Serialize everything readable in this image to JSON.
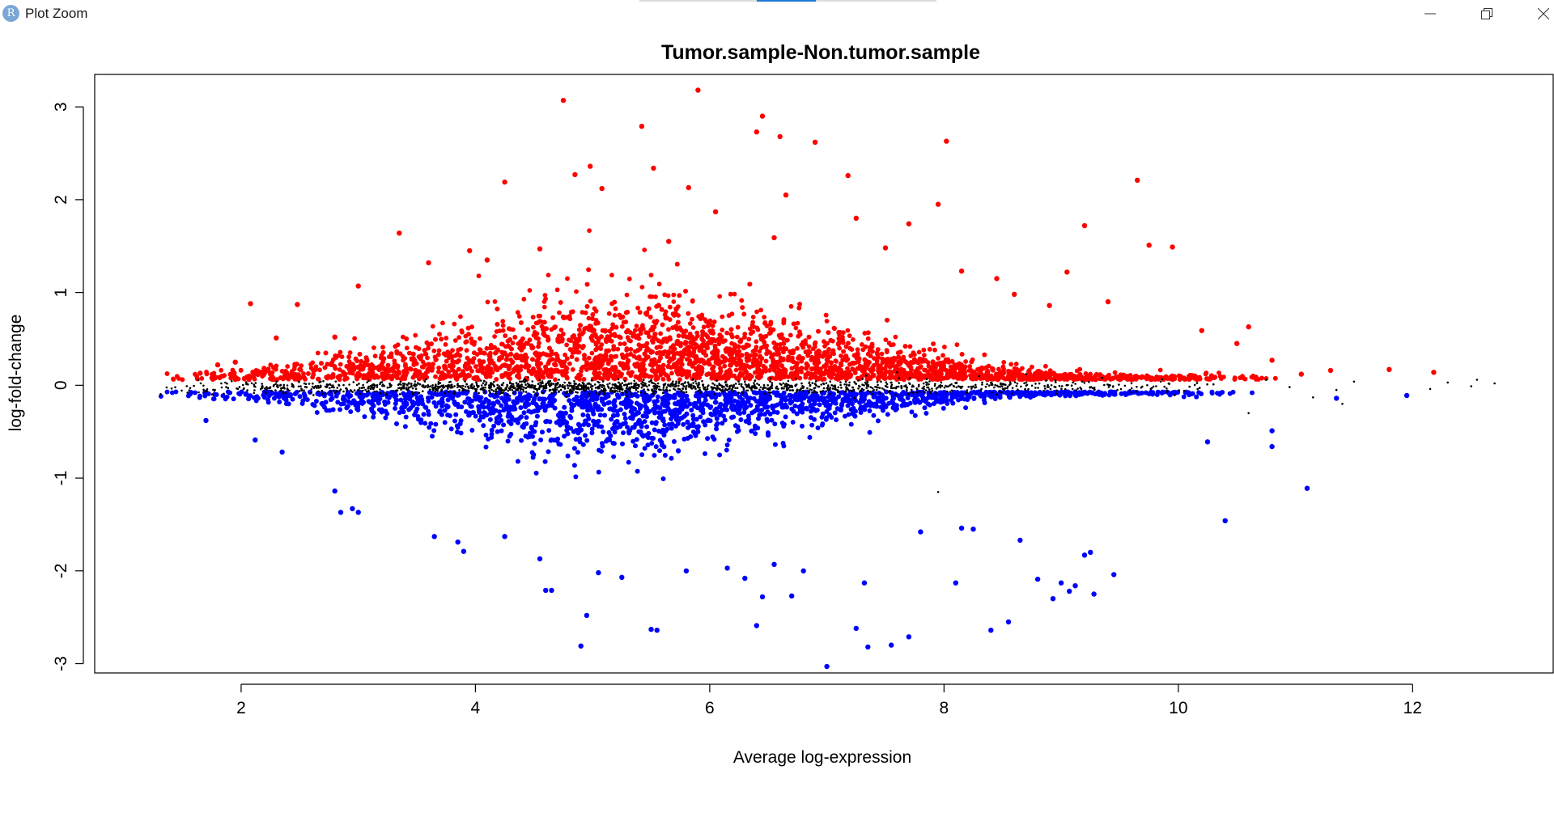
{
  "window": {
    "title": "Plot Zoom",
    "app_icon_letter": "R",
    "minimize_icon": "minimize-icon",
    "restore_icon": "restore-icon",
    "close_icon": "close-icon"
  },
  "chart_data": {
    "type": "scatter",
    "title": "Tumor.sample-Non.tumor.sample",
    "xlabel": "Average log-expression",
    "ylabel": "log-fold-change",
    "xlim": [
      0.75,
      13.2
    ],
    "ylim": [
      -3.1,
      3.35
    ],
    "xticks": [
      2,
      4,
      6,
      8,
      10,
      12
    ],
    "yticks": [
      -3,
      -2,
      -1,
      0,
      1,
      2,
      3
    ],
    "grid": false,
    "legend": "none",
    "colors": {
      "up": "#ff0000",
      "down": "#0000ff",
      "notsig": "#000000"
    },
    "series": [
      {
        "status": "up",
        "color": "#ff0000",
        "points": [
          [
            5.9,
            3.18
          ],
          [
            4.75,
            3.07
          ],
          [
            6.45,
            2.9
          ],
          [
            5.42,
            2.79
          ],
          [
            6.4,
            2.73
          ],
          [
            6.6,
            2.68
          ],
          [
            6.9,
            2.62
          ],
          [
            8.02,
            2.63
          ],
          [
            4.98,
            2.36
          ],
          [
            5.52,
            2.34
          ],
          [
            7.18,
            2.26
          ],
          [
            4.85,
            2.27
          ],
          [
            9.65,
            2.21
          ],
          [
            4.25,
            2.19
          ],
          [
            5.08,
            2.12
          ],
          [
            5.82,
            2.13
          ],
          [
            6.65,
            2.05
          ],
          [
            7.95,
            1.95
          ],
          [
            6.05,
            1.87
          ],
          [
            7.25,
            1.8
          ],
          [
            9.2,
            1.72
          ],
          [
            7.7,
            1.74
          ],
          [
            3.35,
            1.64
          ],
          [
            9.95,
            1.49
          ],
          [
            9.75,
            1.51
          ],
          [
            2.08,
            0.88
          ],
          [
            2.48,
            0.87
          ],
          [
            12.18,
            0.14
          ],
          [
            11.8,
            0.17
          ],
          [
            11.3,
            0.16
          ],
          [
            10.8,
            0.27
          ],
          [
            10.6,
            0.63
          ],
          [
            9.05,
            1.22
          ],
          [
            8.45,
            1.15
          ],
          [
            8.6,
            0.98
          ],
          [
            2.3,
            0.51
          ],
          [
            2.8,
            0.52
          ],
          [
            3.0,
            1.07
          ],
          [
            3.6,
            1.32
          ],
          [
            3.95,
            1.45
          ],
          [
            4.1,
            1.35
          ],
          [
            4.55,
            1.47
          ],
          [
            5.65,
            1.55
          ],
          [
            6.55,
            1.59
          ],
          [
            7.5,
            1.48
          ],
          [
            8.15,
            1.23
          ],
          [
            8.9,
            0.86
          ],
          [
            9.4,
            0.9
          ],
          [
            10.2,
            0.59
          ],
          [
            10.5,
            0.45
          ],
          [
            11.05,
            0.12
          ],
          [
            1.65,
            0.13
          ],
          [
            1.8,
            0.22
          ],
          [
            1.95,
            0.25
          ]
        ]
      },
      {
        "status": "down",
        "color": "#0000ff",
        "points": [
          [
            7.0,
            -3.03
          ],
          [
            4.9,
            -2.81
          ],
          [
            7.35,
            -2.82
          ],
          [
            7.55,
            -2.8
          ],
          [
            7.7,
            -2.71
          ],
          [
            7.25,
            -2.62
          ],
          [
            8.4,
            -2.64
          ],
          [
            8.55,
            -2.55
          ],
          [
            6.4,
            -2.59
          ],
          [
            5.5,
            -2.63
          ],
          [
            5.55,
            -2.64
          ],
          [
            4.95,
            -2.48
          ],
          [
            9.28,
            -2.25
          ],
          [
            8.93,
            -2.3
          ],
          [
            9.07,
            -2.22
          ],
          [
            9.12,
            -2.16
          ],
          [
            6.45,
            -2.28
          ],
          [
            6.7,
            -2.27
          ],
          [
            7.32,
            -2.13
          ],
          [
            8.1,
            -2.13
          ],
          [
            9.0,
            -2.13
          ],
          [
            9.45,
            -2.04
          ],
          [
            8.8,
            -2.09
          ],
          [
            4.6,
            -2.21
          ],
          [
            4.65,
            -2.21
          ],
          [
            5.05,
            -2.02
          ],
          [
            5.25,
            -2.07
          ],
          [
            5.8,
            -2.0
          ],
          [
            6.15,
            -1.97
          ],
          [
            6.55,
            -1.93
          ],
          [
            6.8,
            -2.0
          ],
          [
            6.3,
            -2.08
          ],
          [
            9.2,
            -1.83
          ],
          [
            9.25,
            -1.8
          ],
          [
            4.55,
            -1.87
          ],
          [
            8.65,
            -1.67
          ],
          [
            7.8,
            -1.58
          ],
          [
            8.15,
            -1.54
          ],
          [
            8.25,
            -1.55
          ],
          [
            10.4,
            -1.46
          ],
          [
            11.1,
            -1.11
          ],
          [
            10.8,
            -0.66
          ],
          [
            10.8,
            -0.49
          ],
          [
            10.25,
            -0.61
          ],
          [
            11.95,
            -0.11
          ],
          [
            11.35,
            -0.14
          ],
          [
            3.65,
            -1.63
          ],
          [
            3.85,
            -1.69
          ],
          [
            3.9,
            -1.79
          ],
          [
            4.25,
            -1.63
          ],
          [
            2.85,
            -1.37
          ],
          [
            3.0,
            -1.37
          ],
          [
            2.95,
            -1.33
          ],
          [
            2.8,
            -1.14
          ],
          [
            2.35,
            -0.72
          ],
          [
            2.12,
            -0.59
          ],
          [
            1.7,
            -0.38
          ]
        ]
      },
      {
        "status": "notsig",
        "color": "#000000",
        "points": [
          [
            12.7,
            0.02
          ],
          [
            12.5,
            -0.01
          ],
          [
            12.3,
            0.03
          ],
          [
            12.15,
            -0.04
          ],
          [
            11.5,
            0.04
          ],
          [
            11.35,
            -0.05
          ],
          [
            11.4,
            -0.2
          ],
          [
            11.15,
            -0.13
          ],
          [
            10.6,
            -0.3
          ],
          [
            10.95,
            -0.02
          ],
          [
            10.75,
            0.06
          ],
          [
            10.3,
            0.01
          ],
          [
            10.05,
            -0.06
          ],
          [
            9.85,
            0.04
          ],
          [
            9.6,
            -0.08
          ],
          [
            9.35,
            0.08
          ],
          [
            9.1,
            0.03
          ],
          [
            8.85,
            -0.06
          ],
          [
            8.95,
            0.05
          ],
          [
            8.7,
            0.12
          ],
          [
            8.45,
            -0.1
          ],
          [
            8.3,
            0.1
          ],
          [
            7.9,
            -0.06
          ],
          [
            8.2,
            -0.08
          ],
          [
            7.6,
            0.14
          ],
          [
            7.95,
            -1.15
          ],
          [
            7.4,
            -0.05
          ],
          [
            12.55,
            0.06
          ]
        ]
      }
    ]
  }
}
